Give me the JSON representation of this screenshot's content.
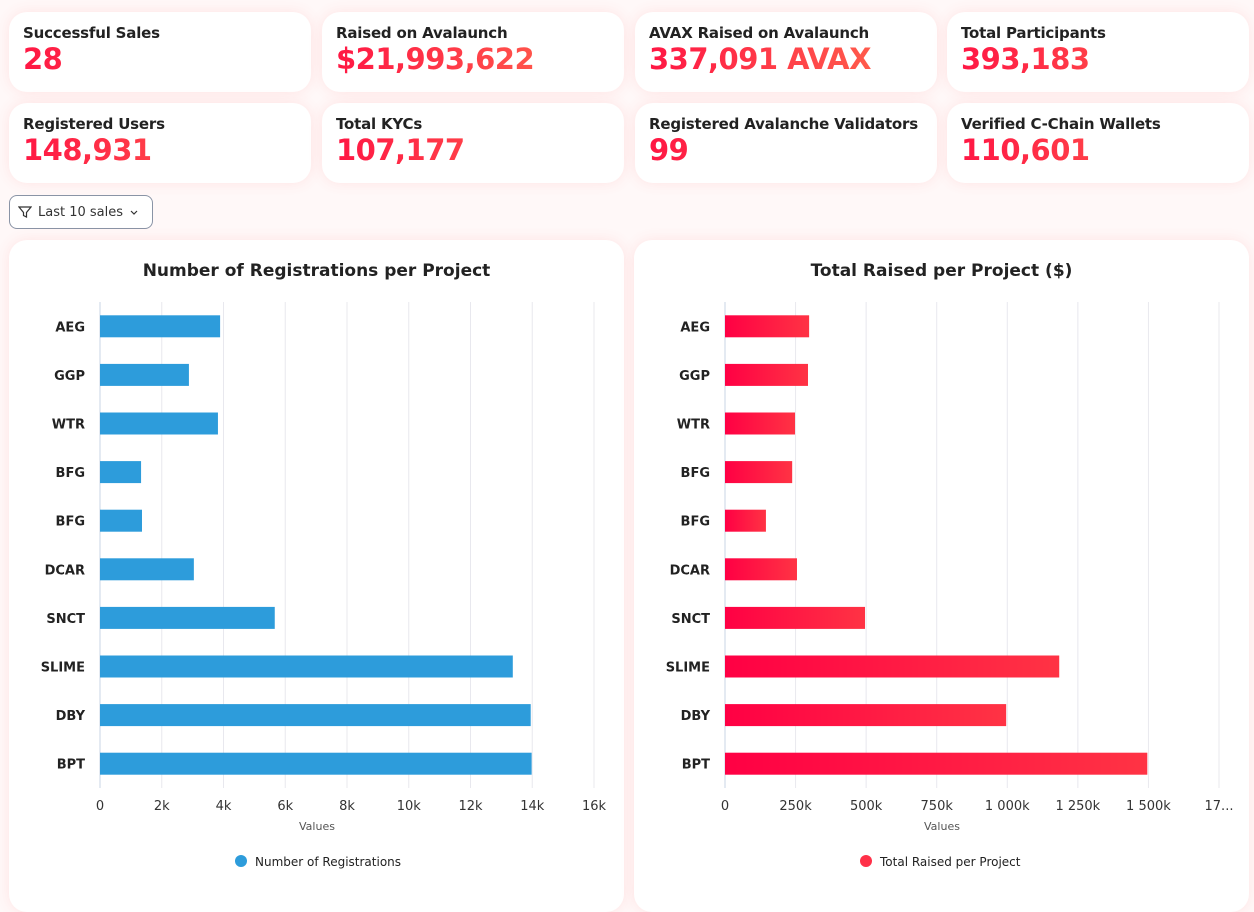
{
  "stats": [
    {
      "label": "Successful Sales",
      "value": "28"
    },
    {
      "label": "Raised on Avalaunch",
      "value": "$21,993,622"
    },
    {
      "label": "AVAX Raised on Avalaunch",
      "value": "337,091 AVAX"
    },
    {
      "label": "Total Participants",
      "value": "393,183"
    },
    {
      "label": "Registered Users",
      "value": "148,931"
    },
    {
      "label": "Total KYCs",
      "value": "107,177"
    },
    {
      "label": "Registered Avalanche Validators",
      "value": "99"
    },
    {
      "label": "Verified C-Chain Wallets",
      "value": "110,601"
    }
  ],
  "filter": {
    "label": "Last 10 sales",
    "icon": "filter-icon"
  },
  "chart_data": [
    {
      "type": "bar",
      "orientation": "horizontal",
      "title": "Number of Registrations per Project",
      "categories": [
        "AEG",
        "GGP",
        "WTR",
        "BFG",
        "BFG",
        "DCAR",
        "SNCT",
        "SLIME",
        "DBY",
        "BPT"
      ],
      "series": [
        {
          "name": "Number of Registrations",
          "values": [
            3890,
            2880,
            3820,
            1330,
            1360,
            3040,
            5660,
            13370,
            13950,
            13980
          ]
        }
      ],
      "xlabel": "Values",
      "xlim": [
        0,
        16000
      ],
      "ticks": [
        "0",
        "2k",
        "4k",
        "6k",
        "8k",
        "10k",
        "12k",
        "14k",
        "16k"
      ],
      "color": "#2d9cdb",
      "grid": true,
      "legend": "bottom"
    },
    {
      "type": "bar",
      "orientation": "horizontal",
      "title": "Total Raised per Project ($)",
      "categories": [
        "AEG",
        "GGP",
        "WTR",
        "BFG",
        "BFG",
        "DCAR",
        "SNCT",
        "SLIME",
        "DBY",
        "BPT"
      ],
      "series": [
        {
          "name": "Total Raised per Project",
          "values": [
            298000,
            294000,
            248000,
            238000,
            145000,
            255000,
            496000,
            1184000,
            996000,
            1496000
          ]
        }
      ],
      "xlabel": "Values",
      "xlim": [
        0,
        1750000
      ],
      "ticks": [
        "0",
        "250k",
        "500k",
        "750k",
        "1 000k",
        "1 250k",
        "1 500k",
        "17..."
      ],
      "color": "#ff1744",
      "grid": true,
      "legend": "bottom"
    }
  ]
}
